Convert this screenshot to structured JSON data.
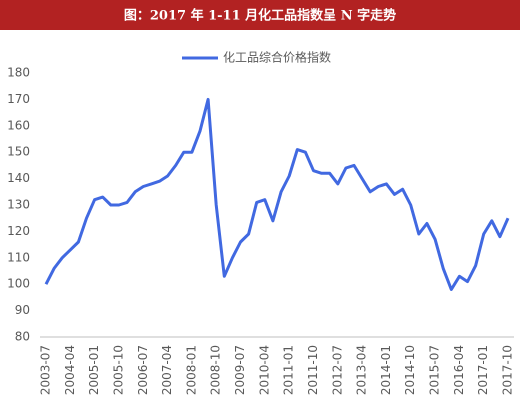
{
  "chart_data": {
    "type": "line",
    "title": "图：2017 年 1-11 月化工品指数呈 N 字走势",
    "categories": [
      "2003-07",
      null,
      null,
      "2004-04",
      null,
      null,
      "2005-01",
      null,
      null,
      "2005-10",
      null,
      null,
      "2006-07",
      null,
      null,
      "2007-04",
      null,
      null,
      "2008-01",
      null,
      null,
      "2008-10",
      null,
      null,
      "2009-07",
      null,
      null,
      "2010-04",
      null,
      null,
      "2011-01",
      null,
      null,
      "2011-10",
      null,
      null,
      "2012-07",
      null,
      null,
      "2013-04",
      null,
      null,
      "2014-01",
      null,
      null,
      "2014-10",
      null,
      null,
      "2015-07",
      null,
      null,
      "2016-04",
      null,
      null,
      "2017-01",
      null,
      null,
      "2017-10"
    ],
    "series": [
      {
        "name": "化工品综合价格指数",
        "color": "#4169e1",
        "values": [
          100,
          106,
          110,
          113,
          116,
          125,
          132,
          133,
          130,
          130,
          131,
          135,
          137,
          138,
          139,
          141,
          145,
          150,
          150,
          158,
          170,
          130,
          103,
          110,
          116,
          119,
          131,
          132,
          124,
          135,
          141,
          151,
          150,
          143,
          142,
          142,
          138,
          144,
          145,
          140,
          135,
          137,
          138,
          134,
          136,
          130,
          119,
          123,
          117,
          106,
          98,
          103,
          101,
          107,
          119,
          124,
          118,
          125
        ]
      }
    ],
    "ylim": [
      80,
      180
    ],
    "yticks": [
      80,
      90,
      100,
      110,
      120,
      130,
      140,
      150,
      160,
      170,
      180
    ],
    "legend": "top"
  }
}
